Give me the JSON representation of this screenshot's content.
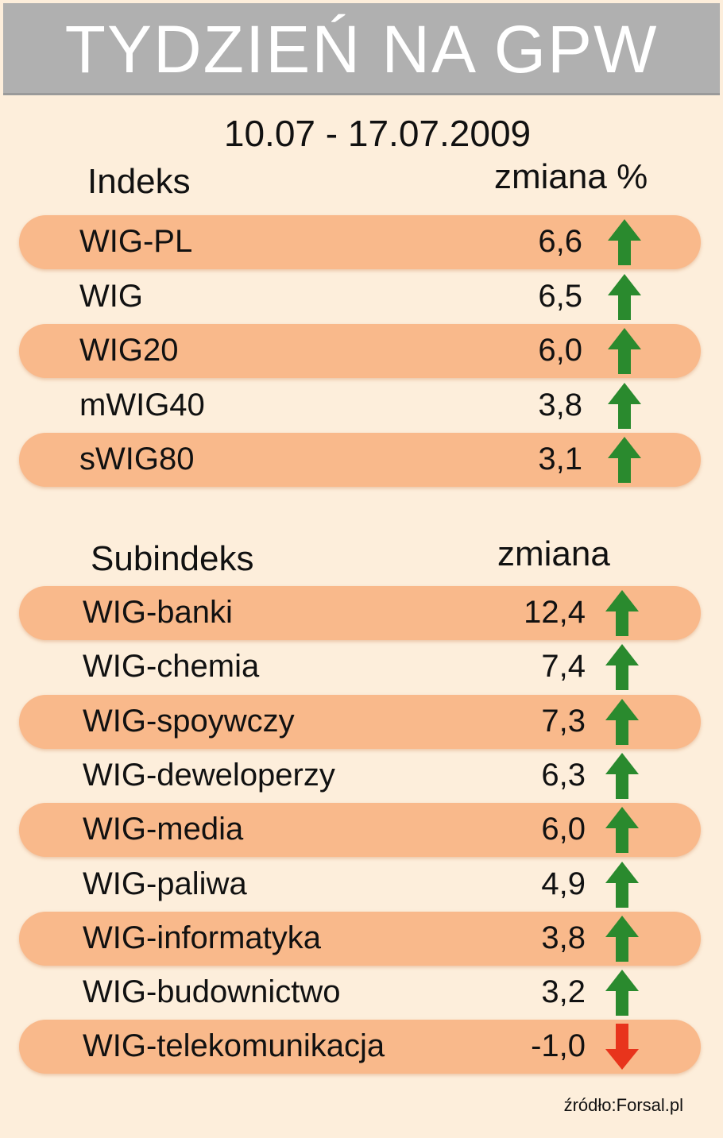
{
  "header": {
    "title": "TYDZIEŃ NA GPW"
  },
  "date_range": "10.07 - 17.07.2009",
  "indices": {
    "heading": "Indeks",
    "value_heading": "zmiana %",
    "rows": [
      {
        "name": "WIG-PL",
        "value": "6,6",
        "direction": "up"
      },
      {
        "name": "WIG",
        "value": "6,5",
        "direction": "up"
      },
      {
        "name": "WIG20",
        "value": "6,0",
        "direction": "up"
      },
      {
        "name": "mWIG40",
        "value": "3,8",
        "direction": "up"
      },
      {
        "name": "sWIG80",
        "value": "3,1",
        "direction": "up"
      }
    ]
  },
  "subindices": {
    "heading": "Subindeks",
    "value_heading": "zmiana",
    "rows": [
      {
        "name": "WIG-banki",
        "value": "12,4",
        "direction": "up"
      },
      {
        "name": "WIG-chemia",
        "value": "7,4",
        "direction": "up"
      },
      {
        "name": "WIG-spoywczy",
        "value": "7,3",
        "direction": "up"
      },
      {
        "name": "WIG-deweloperzy",
        "value": "6,3",
        "direction": "up"
      },
      {
        "name": "WIG-media",
        "value": "6,0",
        "direction": "up"
      },
      {
        "name": "WIG-paliwa",
        "value": "4,9",
        "direction": "up"
      },
      {
        "name": "WIG-informatyka",
        "value": "3,8",
        "direction": "up"
      },
      {
        "name": "WIG-budownictwo",
        "value": "3,2",
        "direction": "up"
      },
      {
        "name": "WIG-telekomunikacja",
        "value": "-1,0",
        "direction": "down"
      }
    ]
  },
  "source": "źródło:Forsal.pl",
  "colors": {
    "background": "#fdeedb",
    "row_highlight": "#f9b98b",
    "arrow_up": "#2a8a2e",
    "arrow_down": "#e8341c",
    "header": "#b0b0b0"
  },
  "chart_data": [
    {
      "type": "table",
      "columns": [
        "Indeks",
        "zmiana %"
      ],
      "categories": [
        "WIG-PL",
        "WIG",
        "WIG20",
        "mWIG40",
        "sWIG80"
      ],
      "values": [
        6.6,
        6.5,
        6.0,
        3.8,
        3.1
      ]
    },
    {
      "type": "table",
      "columns": [
        "Subindeks",
        "zmiana"
      ],
      "categories": [
        "WIG-banki",
        "WIG-chemia",
        "WIG-spoywczy",
        "WIG-deweloperzy",
        "WIG-media",
        "WIG-paliwa",
        "WIG-informatyka",
        "WIG-budownictwo",
        "WIG-telekomunikacja"
      ],
      "values": [
        12.4,
        7.4,
        7.3,
        6.3,
        6.0,
        4.9,
        3.8,
        3.2,
        -1.0
      ]
    }
  ]
}
